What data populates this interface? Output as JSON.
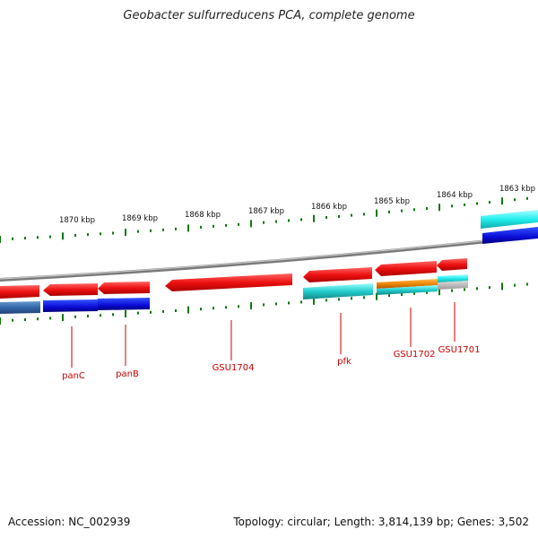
{
  "title": "Geobacter sulfurreducens PCA, complete genome",
  "footer": {
    "accession": "Accession: NC_002939",
    "summary": "Topology: circular; Length: 3,814,139 bp; Genes: 3,502"
  },
  "ruler": {
    "labels": [
      "1870 kbp",
      "1869 kbp",
      "1868 kbp",
      "1867 kbp",
      "1866 kbp",
      "1865 kbp",
      "1864 kbp",
      "1863 kbp"
    ]
  },
  "genes": [
    {
      "label": "panC"
    },
    {
      "label": "panB"
    },
    {
      "label": "GSU1704"
    },
    {
      "label": "pfk"
    },
    {
      "label": "GSU1702"
    },
    {
      "label": "GSU1701"
    }
  ],
  "colors": {
    "forward_red": "#ee1111",
    "protein_blue": "#1111dd",
    "cyan": "#22cccc",
    "orange": "#ee8800",
    "steel": "#4477aa",
    "backbone": "#8a8a8a",
    "tick_green": "#117711",
    "label_red": "#cc0000"
  }
}
